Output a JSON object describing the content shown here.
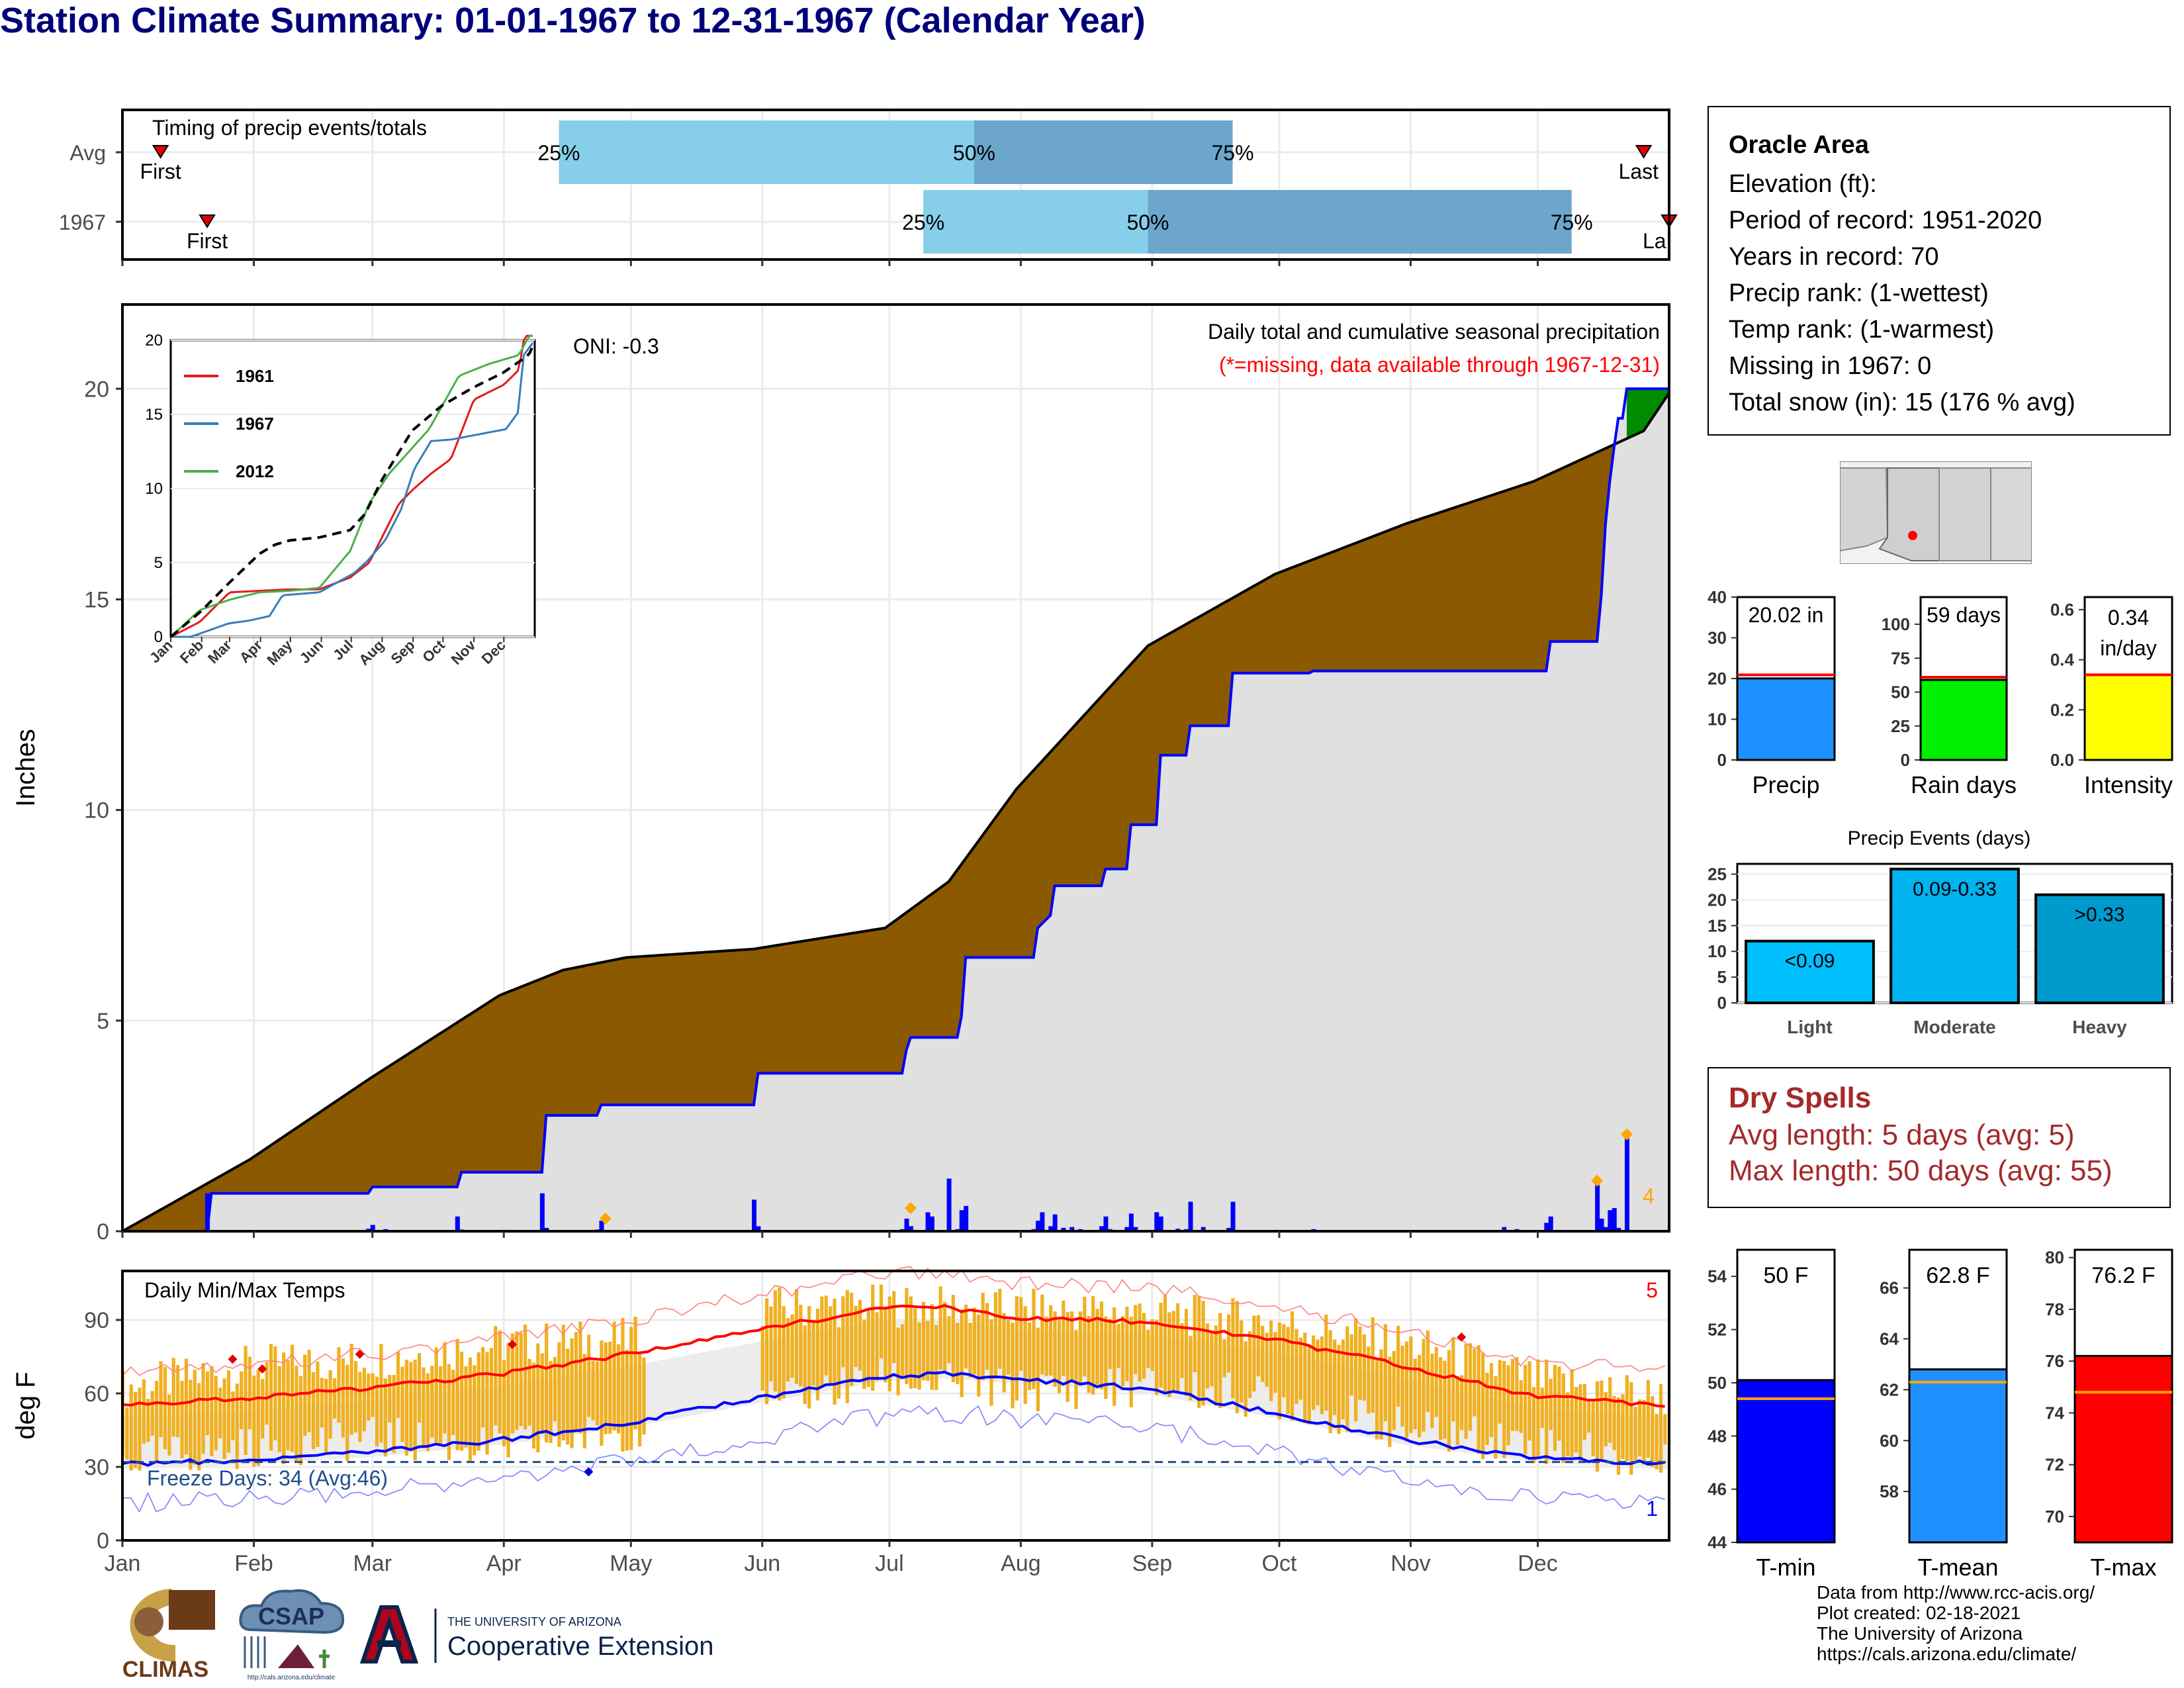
{
  "title": "Station Climate Summary: 01-01-1967 to 12-31-1967 (Calendar Year)",
  "timing": {
    "label": "Timing of precip events/totals",
    "rows": [
      {
        "name": "Avg",
        "first_doy": 10,
        "last_doy": 360,
        "p25_doy": 104,
        "p50_doy": 202,
        "p75_doy": 263,
        "first_label": "First",
        "last_label": "Last"
      },
      {
        "name": "1967",
        "first_doy": 21,
        "last_doy": 366,
        "p25_doy": 190,
        "p50_doy": 243,
        "p75_doy": 343,
        "first_label": "First",
        "last_label": "La"
      }
    ],
    "pct_labels": [
      "25%",
      "50%",
      "75%"
    ]
  },
  "precip_panel": {
    "ylabel": "Inches",
    "yticks": [
      0,
      5,
      10,
      15,
      20
    ],
    "oni": "ONI: -0.3",
    "caption": "Daily total and cumulative seasonal precipitation",
    "missing_note": "(*=missing, data available through 1967-12-31)",
    "count_label": "4"
  },
  "inset": {
    "yticks": [
      0,
      5,
      10,
      15,
      20
    ],
    "xticks": [
      "Jan",
      "Feb",
      "Mar",
      "Apr",
      "May",
      "Jun",
      "Jul",
      "Aug",
      "Sep",
      "Oct",
      "Nov",
      "Dec"
    ],
    "legend": [
      {
        "name": "1961",
        "color": "#e41a1c"
      },
      {
        "name": "1967",
        "color": "#377eb8"
      },
      {
        "name": "2012",
        "color": "#4daf4a"
      }
    ]
  },
  "temp_panel": {
    "ylabel": "deg F",
    "yticks": [
      0,
      30,
      60,
      90
    ],
    "label": "Daily Min/Max Temps",
    "freeze": "Freeze Days: 34 (Avg:46)",
    "count_hi": "5",
    "count_lo": "1",
    "months": [
      "Jan",
      "Feb",
      "Mar",
      "Apr",
      "May",
      "Jun",
      "Jul",
      "Aug",
      "Sep",
      "Oct",
      "Nov",
      "Dec"
    ]
  },
  "info": {
    "name": "Oracle Area",
    "lines": [
      "Elevation (ft):",
      "Period of record: 1951-2020",
      "Years in record: 70",
      "Precip rank:  (1-wettest)",
      "Temp rank:  (1-warmest)",
      "Missing in 1967: 0",
      "Total snow (in): 15 (176 % avg)"
    ]
  },
  "summary_bars": [
    {
      "label": "Precip",
      "value_text": "20.02 in",
      "value": 20.02,
      "avg": 20.9,
      "ymax": 40,
      "ticks": [
        0,
        10,
        20,
        30,
        40
      ],
      "color": "#1e90ff"
    },
    {
      "label": "Rain days",
      "value_text": "59 days",
      "value": 59,
      "avg": 61,
      "ymax": 120,
      "ticks": [
        0,
        25,
        50,
        75,
        100
      ],
      "color": "#00ee00"
    },
    {
      "label": "Intensity",
      "value_text": "0.34 in/day",
      "value": 0.34,
      "avg": 0.34,
      "ymax": 0.65,
      "ticks": [
        "0.0",
        "0.2",
        "0.4",
        "0.6"
      ],
      "color": "#ffff00"
    }
  ],
  "events": {
    "title": "Precip Events (days)",
    "yticks": [
      0,
      5,
      10,
      15,
      20,
      25
    ],
    "bars": [
      {
        "label": "Light",
        "value": 12,
        "range": "<0.09",
        "color": "#00bfff"
      },
      {
        "label": "Moderate",
        "value": 26,
        "range": "0.09-0.33",
        "color": "#00b2ee"
      },
      {
        "label": "Heavy",
        "value": 21,
        "range": ">0.33",
        "color": "#009acd"
      }
    ]
  },
  "dry_spells": {
    "title": "Dry Spells",
    "avg": "Avg length: 5 days (avg: 5)",
    "max": "Max length: 50 days (avg: 55)"
  },
  "temp_bars": [
    {
      "label": "T-min",
      "value_text": "50 F",
      "value": 50.1,
      "avg": 49.4,
      "ymin": 44,
      "ymax": 55,
      "ticks": [
        44,
        46,
        48,
        50,
        52,
        54
      ],
      "color": "#0000ff"
    },
    {
      "label": "T-mean",
      "value_text": "62.8 F",
      "value": 62.8,
      "avg": 62.3,
      "ymin": 56,
      "ymax": 67.5,
      "ticks": [
        58,
        60,
        62,
        64,
        66
      ],
      "color": "#1e90ff"
    },
    {
      "label": "T-max",
      "value_text": "76.2 F",
      "value": 76.2,
      "avg": 74.8,
      "ymin": 69,
      "ymax": 80.3,
      "ticks": [
        70,
        72,
        74,
        76,
        78,
        80
      ],
      "color": "#ff0000"
    }
  ],
  "credits": {
    "line1": "Data from http://www.rcc-acis.org/",
    "line2": "Plot created: 02-18-2021",
    "line3": "The University of Arizona",
    "line4": "https://cals.arizona.edu/climate/"
  },
  "logos": {
    "climas": "CLIMAS",
    "csap": "CSAP",
    "csap_url": "http://cals.arizona.edu/climate",
    "ua_small": "THE UNIVERSITY OF ARIZONA",
    "ua_big": "Cooperative Extension"
  },
  "chart_data": [
    {
      "type": "area",
      "title": "Daily total and cumulative seasonal precipitation",
      "ylabel": "Inches",
      "ylim": [
        0,
        22
      ],
      "x_unit": "day of year",
      "avg_cumulative": {
        "x": [
          1,
          31,
          59,
          90,
          105,
          120,
          150,
          181,
          196,
          212,
          243,
          273,
          304,
          334,
          360,
          366
        ],
        "y": [
          0,
          1.7,
          3.6,
          5.6,
          6.2,
          6.5,
          6.7,
          7.2,
          8.3,
          10.5,
          13.9,
          15.6,
          16.8,
          17.8,
          19.0,
          19.9
        ]
      },
      "cumulative_1967": {
        "x": [
          1,
          21,
          22,
          59,
          60,
          80,
          81,
          100,
          101,
          113,
          114,
          150,
          151,
          185,
          186,
          187,
          198,
          199,
          200,
          216,
          217,
          220,
          221,
          232,
          233,
          238,
          239,
          245,
          246,
          252,
          253,
          262,
          263,
          281,
          282,
          337,
          338,
          349,
          350,
          351,
          352,
          353,
          354,
          355,
          356,
          366
        ],
        "y": [
          0,
          0,
          0.9,
          0.9,
          1.05,
          1.05,
          1.4,
          1.4,
          2.75,
          2.75,
          3.0,
          3.0,
          3.75,
          3.75,
          4.3,
          4.6,
          4.6,
          5.1,
          6.5,
          6.5,
          7.2,
          7.5,
          8.2,
          8.2,
          8.6,
          8.6,
          9.65,
          9.65,
          11.3,
          11.3,
          12.0,
          12.0,
          13.25,
          13.25,
          13.3,
          13.3,
          14.0,
          14.0,
          15.1,
          16.8,
          17.8,
          18.6,
          19.3,
          19.3,
          20.0,
          20.0
        ]
      },
      "daily_1967": {
        "x": [
          21,
          59,
          60,
          63,
          80,
          81,
          100,
          101,
          113,
          114,
          150,
          151,
          185,
          186,
          187,
          191,
          192,
          196,
          198,
          199,
          200,
          216,
          217,
          218,
          220,
          221,
          223,
          225,
          227,
          232,
          233,
          234,
          238,
          239,
          240,
          245,
          246,
          250,
          252,
          253,
          256,
          262,
          263,
          282,
          327,
          330,
          337,
          338,
          349,
          350,
          351,
          352,
          353,
          354,
          356
        ],
        "y": [
          0.9,
          0.06,
          0.15,
          0.05,
          0.35,
          0.04,
          0.9,
          0.08,
          0.04,
          0.25,
          0.75,
          0.12,
          0.05,
          0.3,
          0.12,
          0.45,
          0.35,
          1.25,
          0.05,
          0.5,
          0.6,
          0.05,
          0.25,
          0.45,
          0.12,
          0.4,
          0.08,
          0.1,
          0.05,
          0.12,
          0.35,
          0.05,
          0.1,
          0.42,
          0.1,
          0.45,
          0.35,
          0.06,
          0.05,
          0.7,
          0.1,
          0.08,
          0.7,
          0.05,
          0.1,
          0.05,
          0.2,
          0.35,
          1.1,
          0.3,
          0.1,
          0.5,
          0.55,
          0.08,
          2.2
        ]
      }
    },
    {
      "type": "line",
      "title": "",
      "ylim": [
        0,
        20
      ],
      "series": [
        {
          "name": "1961",
          "x": [
            1,
            30,
            45,
            60,
            120,
            150,
            181,
            200,
            215,
            230,
            245,
            262,
            282,
            305,
            320,
            335,
            350,
            355,
            360,
            366
          ],
          "y": [
            0,
            1,
            2,
            3,
            3.2,
            3.2,
            4,
            5,
            7,
            9,
            10,
            11,
            12,
            16,
            16.5,
            17,
            18,
            20,
            20.5,
            21
          ]
        },
        {
          "name": "1967",
          "x": [
            1,
            21,
            59,
            80,
            100,
            113,
            150,
            185,
            198,
            216,
            232,
            245,
            262,
            282,
            337,
            349,
            355,
            366
          ],
          "y": [
            0,
            0,
            0.9,
            1.1,
            1.4,
            2.8,
            3,
            4.3,
            5.1,
            6.5,
            8.6,
            11.3,
            13.2,
            13.3,
            14,
            15.1,
            19,
            20
          ]
        },
        {
          "name": "2012",
          "x": [
            1,
            30,
            60,
            90,
            120,
            150,
            181,
            200,
            220,
            240,
            260,
            290,
            320,
            350,
            358,
            366
          ],
          "y": [
            0,
            1.8,
            2.5,
            3,
            3.1,
            3.3,
            5.8,
            9,
            11,
            12.5,
            14,
            17.6,
            18.4,
            19,
            20,
            22
          ]
        },
        {
          "name": "Avg",
          "x": [
            1,
            31,
            59,
            90,
            105,
            120,
            150,
            181,
            196,
            212,
            243,
            273,
            304,
            334,
            360,
            366
          ],
          "y": [
            0,
            1.7,
            3.6,
            5.6,
            6.2,
            6.5,
            6.7,
            7.2,
            8.3,
            10.5,
            13.9,
            15.6,
            16.8,
            17.8,
            19,
            19.9
          ]
        }
      ]
    },
    {
      "type": "area",
      "title": "Daily Min/Max Temps",
      "ylabel": "deg F",
      "ylim": [
        0,
        110
      ],
      "freeze_line": 32,
      "avg_max": {
        "x": [
          1,
          31,
          59,
          90,
          120,
          151,
          181,
          196,
          212,
          243,
          273,
          304,
          334,
          366
        ],
        "y": [
          55,
          58,
          62,
          68,
          76,
          86,
          95,
          95,
          91,
          89,
          82,
          71,
          59,
          55
        ]
      },
      "avg_min": {
        "x": [
          1,
          31,
          59,
          90,
          120,
          151,
          181,
          196,
          212,
          243,
          273,
          304,
          334,
          366
        ],
        "y": [
          31,
          33,
          36,
          41,
          48,
          58,
          67,
          68,
          66,
          62,
          52,
          41,
          34,
          31
        ]
      },
      "range_1967_envelope": {
        "x": [
          1,
          31,
          59,
          90,
          120,
          151,
          181,
          212,
          243,
          273,
          304,
          334,
          366
        ],
        "max": [
          62,
          71,
          74,
          80,
          82,
          95,
          96,
          94,
          93,
          89,
          80,
          66,
          58
        ],
        "min": [
          33,
          38,
          42,
          38,
          45,
          56,
          66,
          61,
          63,
          58,
          45,
          40,
          30
        ]
      }
    },
    {
      "type": "bar",
      "categories": [
        "Precip"
      ],
      "values": [
        20.02
      ],
      "ylim": [
        0,
        40
      ]
    },
    {
      "type": "bar",
      "categories": [
        "Rain days"
      ],
      "values": [
        59
      ],
      "ylim": [
        0,
        120
      ]
    },
    {
      "type": "bar",
      "categories": [
        "Intensity"
      ],
      "values": [
        0.34
      ],
      "ylim": [
        0,
        0.65
      ]
    },
    {
      "type": "bar",
      "title": "Precip Events (days)",
      "categories": [
        "Light",
        "Moderate",
        "Heavy"
      ],
      "values": [
        12,
        26,
        21
      ],
      "ylim": [
        0,
        27
      ]
    },
    {
      "type": "bar",
      "categories": [
        "T-min"
      ],
      "values": [
        50.1
      ],
      "ylim": [
        44,
        55
      ]
    },
    {
      "type": "bar",
      "categories": [
        "T-mean"
      ],
      "values": [
        62.8
      ],
      "ylim": [
        56,
        67.5
      ]
    },
    {
      "type": "bar",
      "categories": [
        "T-max"
      ],
      "values": [
        76.2
      ],
      "ylim": [
        69,
        80.3
      ]
    }
  ]
}
